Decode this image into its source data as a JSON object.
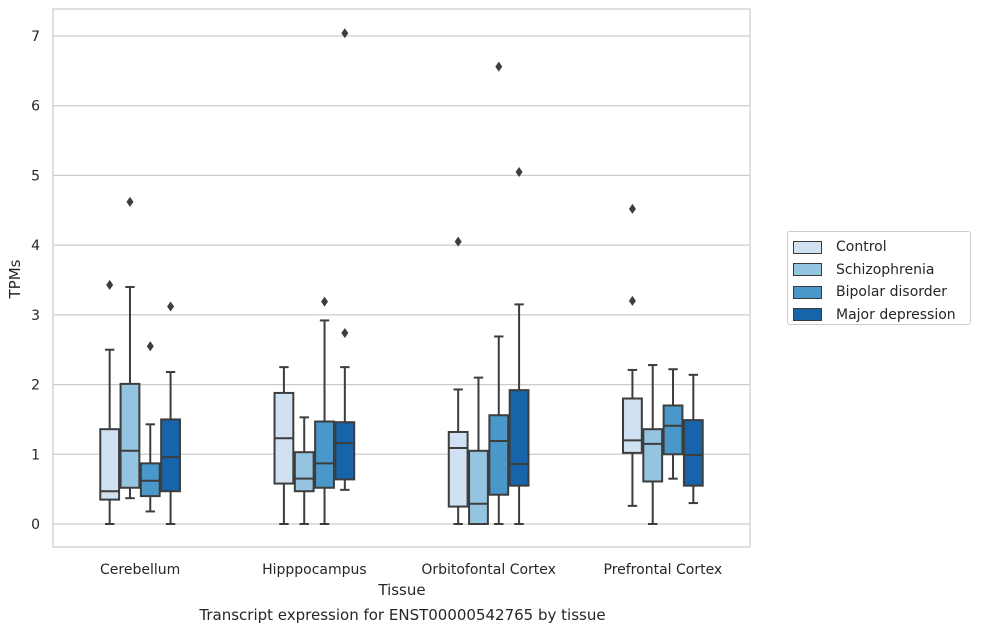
{
  "chart_data": {
    "type": "box",
    "xlabel": "Tissue",
    "ylabel": "TPMs",
    "caption": "Transcript expression for ENST00000542765 by tissue",
    "ylim": [
      -0.35,
      7.4
    ],
    "yticks": [
      0,
      1,
      2,
      3,
      4,
      5,
      6,
      7
    ],
    "grid": "horizontal",
    "legend_position": "outside-right",
    "categories": [
      "Cerebellum",
      "Hipppocampus",
      "Orbitofontal Cortex",
      "Prefrontal Cortex"
    ],
    "series": [
      {
        "name": "Control",
        "color": "#d0e1f2",
        "boxes": [
          {
            "whislo": 0,
            "q1": 0.35,
            "med": 0.47,
            "q3": 1.36,
            "whishi": 2.5,
            "fliers": [
              3.43
            ]
          },
          {
            "whislo": 0,
            "q1": 0.58,
            "med": 1.23,
            "q3": 1.88,
            "whishi": 2.25,
            "fliers": []
          },
          {
            "whislo": 0,
            "q1": 0.25,
            "med": 1.09,
            "q3": 1.32,
            "whishi": 1.93,
            "fliers": [
              4.05
            ]
          },
          {
            "whislo": 0.26,
            "q1": 1.02,
            "med": 1.2,
            "q3": 1.8,
            "whishi": 2.21,
            "fliers": [
              3.2,
              4.52
            ]
          }
        ]
      },
      {
        "name": "Schizophrenia",
        "color": "#94c4df",
        "boxes": [
          {
            "whislo": 0.37,
            "q1": 0.52,
            "med": 1.05,
            "q3": 2.01,
            "whishi": 3.4,
            "fliers": [
              4.62
            ]
          },
          {
            "whislo": 0,
            "q1": 0.47,
            "med": 0.65,
            "q3": 1.03,
            "whishi": 1.53,
            "fliers": []
          },
          {
            "whislo": 0,
            "q1": 0,
            "med": 0.29,
            "q3": 1.05,
            "whishi": 2.1,
            "fliers": []
          },
          {
            "whislo": 0,
            "q1": 0.61,
            "med": 1.15,
            "q3": 1.36,
            "whishi": 2.28,
            "fliers": []
          }
        ]
      },
      {
        "name": "Bipolar disorder",
        "color": "#4a98c9",
        "boxes": [
          {
            "whislo": 0.18,
            "q1": 0.4,
            "med": 0.62,
            "q3": 0.87,
            "whishi": 1.43,
            "fliers": [
              2.55
            ]
          },
          {
            "whislo": 0,
            "q1": 0.52,
            "med": 0.87,
            "q3": 1.47,
            "whishi": 2.92,
            "fliers": [
              3.19
            ]
          },
          {
            "whislo": 0,
            "q1": 0.42,
            "med": 1.19,
            "q3": 1.56,
            "whishi": 2.69,
            "fliers": [
              6.56
            ]
          },
          {
            "whislo": 0.65,
            "q1": 1.0,
            "med": 1.41,
            "q3": 1.7,
            "whishi": 2.22,
            "fliers": []
          }
        ]
      },
      {
        "name": "Major depression",
        "color": "#1764ab",
        "boxes": [
          {
            "whislo": 0,
            "q1": 0.47,
            "med": 0.96,
            "q3": 1.5,
            "whishi": 2.18,
            "fliers": [
              3.12
            ]
          },
          {
            "whislo": 0.49,
            "q1": 0.64,
            "med": 1.16,
            "q3": 1.46,
            "whishi": 2.25,
            "fliers": [
              2.74,
              7.04
            ]
          },
          {
            "whislo": 0,
            "q1": 0.55,
            "med": 0.86,
            "q3": 1.92,
            "whishi": 3.15,
            "fliers": [
              5.05
            ]
          },
          {
            "whislo": 0.3,
            "q1": 0.55,
            "med": 0.99,
            "q3": 1.49,
            "whishi": 2.14,
            "fliers": []
          }
        ]
      }
    ]
  }
}
